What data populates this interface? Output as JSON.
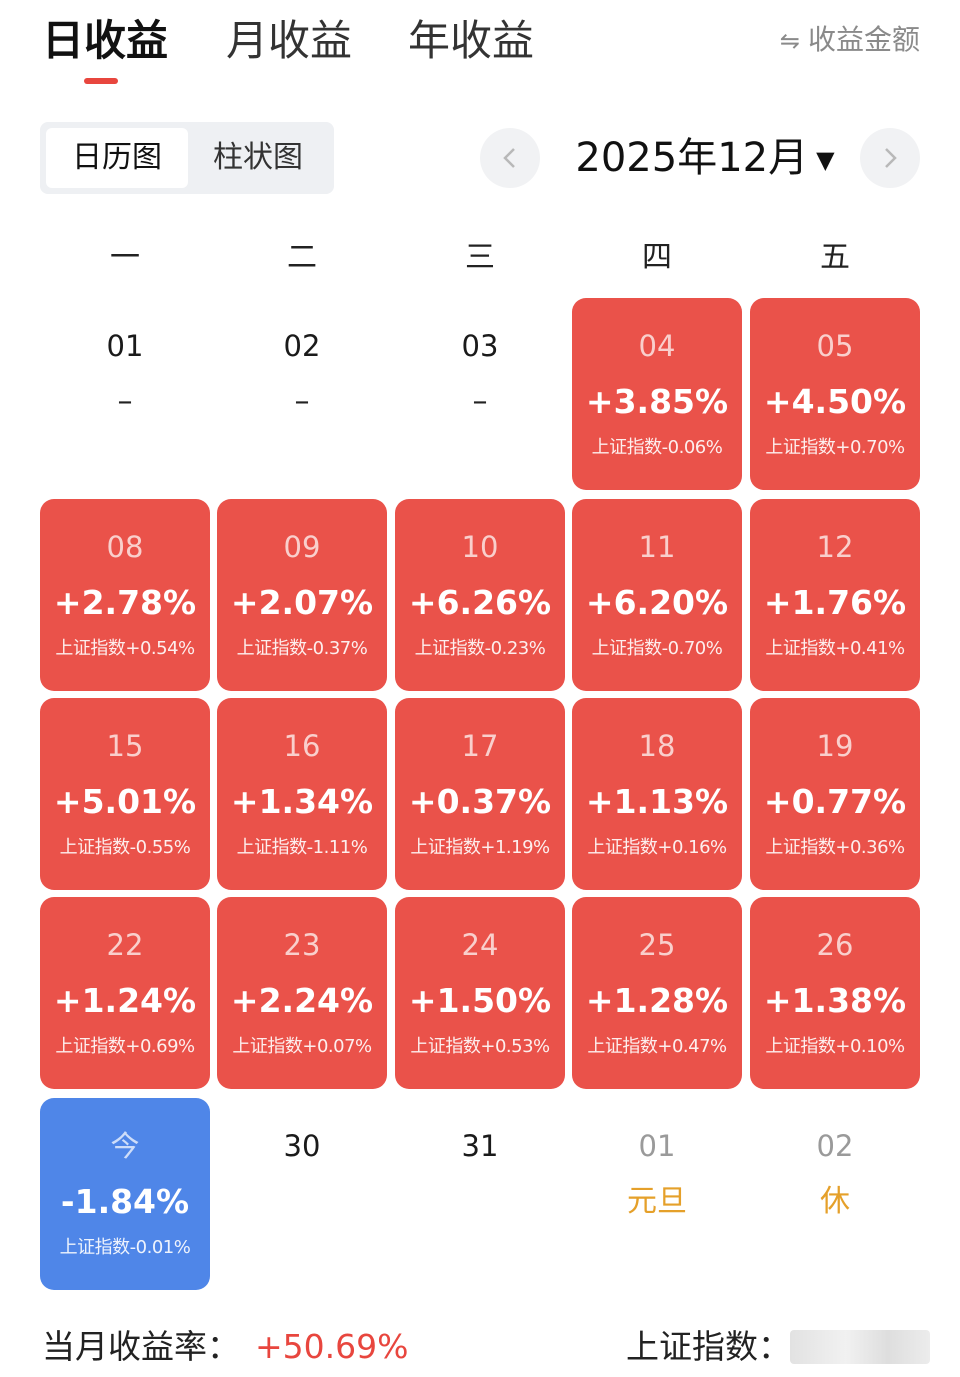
{
  "tabs": [
    {
      "label": "日收益",
      "active": true
    },
    {
      "label": "月收益",
      "active": false
    },
    {
      "label": "年收益",
      "active": false
    }
  ],
  "amount_toggle": {
    "icon": "swap-arrows-icon",
    "label": "收益金额"
  },
  "view_switch": {
    "options": [
      "日历图",
      "柱状图"
    ],
    "selected": "日历图"
  },
  "month": {
    "label": "2025年12月",
    "prev_icon": "chevron-left-icon",
    "next_icon": "chevron-right-icon",
    "dropdown_icon": "caret-down-icon"
  },
  "weekdays": [
    "一",
    "二",
    "三",
    "四",
    "五"
  ],
  "colors": {
    "up": "#ea524a",
    "down": "#4f86e8",
    "holiday": "#e5a02a",
    "accent": "#e8463e"
  },
  "calendar": [
    [
      {
        "date": "01",
        "ret": "–",
        "idx": ""
      },
      {
        "date": "02",
        "ret": "–",
        "idx": ""
      },
      {
        "date": "03",
        "ret": "–",
        "idx": ""
      },
      {
        "date": "04",
        "ret": "+3.85%",
        "idx": "上证指数-0.06%"
      },
      {
        "date": "05",
        "ret": "+4.50%",
        "idx": "上证指数+0.70%"
      }
    ],
    [
      {
        "date": "08",
        "ret": "+2.78%",
        "idx": "上证指数+0.54%"
      },
      {
        "date": "09",
        "ret": "+2.07%",
        "idx": "上证指数-0.37%"
      },
      {
        "date": "10",
        "ret": "+6.26%",
        "idx": "上证指数-0.23%"
      },
      {
        "date": "11",
        "ret": "+6.20%",
        "idx": "上证指数-0.70%"
      },
      {
        "date": "12",
        "ret": "+1.76%",
        "idx": "上证指数+0.41%"
      }
    ],
    [
      {
        "date": "15",
        "ret": "+5.01%",
        "idx": "上证指数-0.55%"
      },
      {
        "date": "16",
        "ret": "+1.34%",
        "idx": "上证指数-1.11%"
      },
      {
        "date": "17",
        "ret": "+0.37%",
        "idx": "上证指数+1.19%"
      },
      {
        "date": "18",
        "ret": "+1.13%",
        "idx": "上证指数+0.16%"
      },
      {
        "date": "19",
        "ret": "+0.77%",
        "idx": "上证指数+0.36%"
      }
    ],
    [
      {
        "date": "22",
        "ret": "+1.24%",
        "idx": "上证指数+0.69%"
      },
      {
        "date": "23",
        "ret": "+2.24%",
        "idx": "上证指数+0.07%"
      },
      {
        "date": "24",
        "ret": "+1.50%",
        "idx": "上证指数+0.53%"
      },
      {
        "date": "25",
        "ret": "+1.28%",
        "idx": "上证指数+0.47%"
      },
      {
        "date": "26",
        "ret": "+1.38%",
        "idx": "上证指数+0.10%"
      }
    ],
    [
      {
        "date": "今",
        "ret": "-1.84%",
        "idx": "上证指数-0.01%"
      },
      {
        "date": "30",
        "ret": "",
        "idx": ""
      },
      {
        "date": "31",
        "ret": "",
        "idx": ""
      },
      {
        "date": "01",
        "ret": "元旦",
        "idx": ""
      },
      {
        "date": "02",
        "ret": "休",
        "idx": ""
      }
    ]
  ],
  "footer": {
    "month_return_label": "当月收益率：",
    "month_return_value": "+50.69%",
    "index_label": "上证指数："
  }
}
